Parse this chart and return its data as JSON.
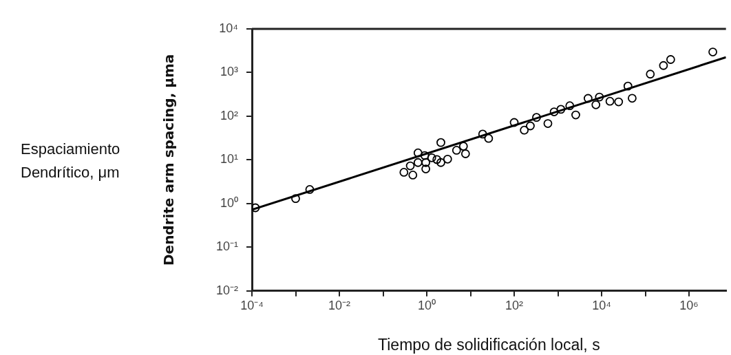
{
  "chart_data": {
    "type": "scatter",
    "xlabel": "Tiempo de solidificación local, s",
    "ylabel": "Dendrite arm spacing, μma",
    "annotations": [
      "Espaciamiento Dendrítico, μm"
    ],
    "log": "xy",
    "grid": false,
    "legend": false,
    "marker": "circle",
    "xlim": [
      0.0001,
      7000000
    ],
    "ylim": [
      0.01,
      10000
    ],
    "xticks": [
      {
        "value": 0.0001,
        "label": "10⁻⁴"
      },
      {
        "value": 0.001,
        "label": null
      },
      {
        "value": 0.01,
        "label": "10⁻²"
      },
      {
        "value": 0.1,
        "label": null
      },
      {
        "value": 1,
        "label": "10⁰"
      },
      {
        "value": 10,
        "label": null
      },
      {
        "value": 100,
        "label": "10²"
      },
      {
        "value": 1000,
        "label": null
      },
      {
        "value": 10000,
        "label": "10⁴"
      },
      {
        "value": 100000,
        "label": null
      },
      {
        "value": 1000000,
        "label": "10⁶"
      }
    ],
    "yticks": [
      {
        "value": 0.01,
        "label": "10⁻²"
      },
      {
        "value": 0.1,
        "label": "10⁻¹"
      },
      {
        "value": 1,
        "label": "10⁰"
      },
      {
        "value": 10,
        "label": "10¹"
      },
      {
        "value": 100,
        "label": "10²"
      },
      {
        "value": 1000,
        "label": "10³"
      },
      {
        "value": 10000,
        "label": "10⁴"
      }
    ],
    "series": [
      {
        "color": "#000000",
        "x": [
          0.00012,
          0.001,
          0.0021,
          0.3,
          0.42,
          0.48,
          0.63,
          0.63,
          0.9,
          0.95,
          0.95,
          1.3,
          1.7,
          2.1,
          2.1,
          3.0,
          4.8,
          6.9,
          7.7,
          19,
          26,
          100,
          170,
          234,
          324,
          590,
          820,
          1170,
          1870,
          2560,
          4900,
          7400,
          8900,
          15500,
          24500,
          40000,
          50000,
          130000,
          260000,
          380000,
          3500000
        ],
        "values": [
          0.8,
          1.3,
          2.1,
          5.2,
          7.3,
          4.5,
          14.5,
          8.7,
          12.6,
          6.2,
          8.7,
          11.2,
          10.2,
          25,
          8.7,
          10.4,
          16.6,
          20.5,
          13.8,
          39,
          31,
          72,
          48,
          60,
          94,
          68,
          126,
          144,
          174,
          107,
          256,
          183,
          275,
          220,
          213,
          490,
          258,
          920,
          1450,
          1990,
          2960
        ]
      },
      {
        "type": "line",
        "marker": "none",
        "color": "#000000",
        "x": [
          0.0001,
          7000000
        ],
        "values": [
          0.72,
          2240
        ]
      }
    ]
  }
}
